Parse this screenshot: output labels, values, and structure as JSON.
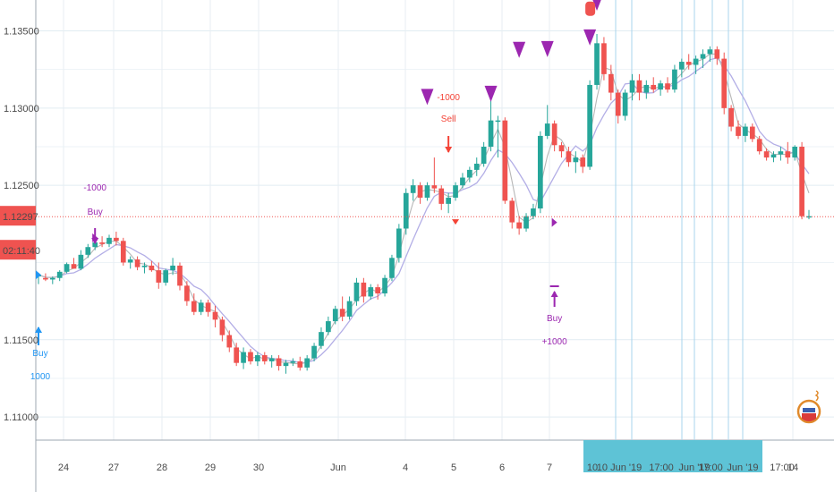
{
  "chart_data": {
    "type": "candlestick",
    "y_range": [
      1.1085,
      1.137
    ],
    "y_ticks": [
      {
        "v": 1.135,
        "label": "1.13500"
      },
      {
        "v": 1.13,
        "label": "1.13000"
      },
      {
        "v": 1.125,
        "label": "1.12500"
      },
      {
        "v": 1.115,
        "label": "1.11500"
      },
      {
        "v": 1.11,
        "label": "1.11000"
      }
    ],
    "x_ticks": [
      "24",
      "27",
      "28",
      "29",
      "30",
      "Jun",
      "4",
      "5",
      "6",
      "7",
      "10",
      "10 Jun '19",
      "17:00",
      "Jun '19",
      "17:00",
      "Jun '19",
      "17:00",
      "14"
    ],
    "current_price": {
      "value": 1.12297,
      "label": "1.12297",
      "countdown": "02:11:40"
    },
    "colors": {
      "up": "#26a69a",
      "down": "#ef5350",
      "ma_fast": "#b7b7b7",
      "ma_slow": "#b3aee6",
      "signal": "#9c27b0",
      "buy": "#2196f3",
      "sell": "#f44336",
      "price_line": "#ef5350"
    },
    "candles": [
      [
        1.1191,
        1.1193,
        1.1186,
        1.1192
      ],
      [
        1.119,
        1.1193,
        1.1188,
        1.1189
      ],
      [
        1.1189,
        1.1191,
        1.1186,
        1.119
      ],
      [
        1.119,
        1.1195,
        1.1188,
        1.1194
      ],
      [
        1.1194,
        1.12,
        1.1193,
        1.1199
      ],
      [
        1.1199,
        1.1203,
        1.1196,
        1.1196
      ],
      [
        1.1196,
        1.1208,
        1.1195,
        1.1205
      ],
      [
        1.1205,
        1.1212,
        1.1203,
        1.121
      ],
      [
        1.121,
        1.1215,
        1.1208,
        1.1213
      ],
      [
        1.1213,
        1.1217,
        1.121,
        1.1212
      ],
      [
        1.1212,
        1.1218,
        1.121,
        1.1216
      ],
      [
        1.1216,
        1.122,
        1.1211,
        1.1214
      ],
      [
        1.1214,
        1.1216,
        1.1198,
        1.12
      ],
      [
        1.12,
        1.1204,
        1.1196,
        1.1202
      ],
      [
        1.1202,
        1.1204,
        1.1195,
        1.1197
      ],
      [
        1.1197,
        1.12,
        1.1193,
        1.1198
      ],
      [
        1.1198,
        1.1201,
        1.1194,
        1.1195
      ],
      [
        1.1195,
        1.12,
        1.1183,
        1.1187
      ],
      [
        1.1187,
        1.1196,
        1.1185,
        1.1195
      ],
      [
        1.1195,
        1.1203,
        1.1192,
        1.1198
      ],
      [
        1.1198,
        1.12,
        1.1182,
        1.1185
      ],
      [
        1.1185,
        1.1188,
        1.1172,
        1.1175
      ],
      [
        1.1175,
        1.118,
        1.1166,
        1.1168
      ],
      [
        1.1168,
        1.1176,
        1.1166,
        1.1174
      ],
      [
        1.1174,
        1.1176,
        1.1165,
        1.1168
      ],
      [
        1.1168,
        1.1172,
        1.1158,
        1.1163
      ],
      [
        1.1163,
        1.1165,
        1.1149,
        1.1153
      ],
      [
        1.1153,
        1.1156,
        1.1142,
        1.1145
      ],
      [
        1.1145,
        1.1148,
        1.1133,
        1.1135
      ],
      [
        1.1135,
        1.1145,
        1.1131,
        1.1142
      ],
      [
        1.1142,
        1.1144,
        1.1134,
        1.1136
      ],
      [
        1.1136,
        1.1142,
        1.1133,
        1.114
      ],
      [
        1.114,
        1.1142,
        1.1134,
        1.1136
      ],
      [
        1.1136,
        1.114,
        1.1132,
        1.1138
      ],
      [
        1.1138,
        1.114,
        1.113,
        1.1133
      ],
      [
        1.1133,
        1.1137,
        1.1128,
        1.1135
      ],
      [
        1.1135,
        1.1138,
        1.1133,
        1.1136
      ],
      [
        1.1136,
        1.1139,
        1.113,
        1.1132
      ],
      [
        1.1132,
        1.114,
        1.113,
        1.1138
      ],
      [
        1.1138,
        1.1148,
        1.1136,
        1.1146
      ],
      [
        1.1146,
        1.1158,
        1.1144,
        1.1155
      ],
      [
        1.1155,
        1.1165,
        1.1153,
        1.1162
      ],
      [
        1.1162,
        1.1172,
        1.116,
        1.117
      ],
      [
        1.117,
        1.1178,
        1.1162,
        1.1165
      ],
      [
        1.1165,
        1.1178,
        1.1163,
        1.1175
      ],
      [
        1.1175,
        1.119,
        1.1172,
        1.1187
      ],
      [
        1.1187,
        1.119,
        1.1174,
        1.1178
      ],
      [
        1.1178,
        1.1186,
        1.1176,
        1.1184
      ],
      [
        1.1184,
        1.1186,
        1.1176,
        1.118
      ],
      [
        1.118,
        1.1192,
        1.1178,
        1.119
      ],
      [
        1.119,
        1.1205,
        1.1188,
        1.1203
      ],
      [
        1.1203,
        1.1225,
        1.12,
        1.1222
      ],
      [
        1.1222,
        1.1248,
        1.1218,
        1.1245
      ],
      [
        1.1245,
        1.1254,
        1.124,
        1.125
      ],
      [
        1.125,
        1.1252,
        1.1238,
        1.1242
      ],
      [
        1.1242,
        1.1252,
        1.124,
        1.125
      ],
      [
        1.125,
        1.1268,
        1.1245,
        1.1248
      ],
      [
        1.1248,
        1.125,
        1.1234,
        1.1238
      ],
      [
        1.1238,
        1.1245,
        1.1232,
        1.1242
      ],
      [
        1.1242,
        1.1252,
        1.124,
        1.125
      ],
      [
        1.125,
        1.1258,
        1.1248,
        1.1255
      ],
      [
        1.1255,
        1.1262,
        1.1252,
        1.126
      ],
      [
        1.126,
        1.1268,
        1.1256,
        1.1264
      ],
      [
        1.1264,
        1.1278,
        1.1262,
        1.1275
      ],
      [
        1.1275,
        1.1305,
        1.1272,
        1.1292
      ],
      [
        1.1292,
        1.1295,
        1.1268,
        1.1292
      ],
      [
        1.1292,
        1.1294,
        1.1238,
        1.124
      ],
      [
        1.124,
        1.1242,
        1.1222,
        1.1226
      ],
      [
        1.1226,
        1.123,
        1.1218,
        1.1222
      ],
      [
        1.1222,
        1.1232,
        1.122,
        1.123
      ],
      [
        1.123,
        1.1238,
        1.1228,
        1.1235
      ],
      [
        1.1235,
        1.1285,
        1.1232,
        1.1282
      ],
      [
        1.1282,
        1.1302,
        1.128,
        1.129
      ],
      [
        1.129,
        1.1292,
        1.1272,
        1.1276
      ],
      [
        1.1276,
        1.1278,
        1.1268,
        1.1272
      ],
      [
        1.1272,
        1.1275,
        1.1262,
        1.1265
      ],
      [
        1.1265,
        1.1272,
        1.1258,
        1.1268
      ],
      [
        1.1268,
        1.127,
        1.1258,
        1.1262
      ],
      [
        1.1262,
        1.1318,
        1.126,
        1.1315
      ],
      [
        1.1315,
        1.1348,
        1.1312,
        1.1342
      ],
      [
        1.1342,
        1.1346,
        1.1318,
        1.1322
      ],
      [
        1.1322,
        1.1328,
        1.1305,
        1.131
      ],
      [
        1.131,
        1.1312,
        1.129,
        1.1295
      ],
      [
        1.1295,
        1.1312,
        1.1292,
        1.131
      ],
      [
        1.131,
        1.1322,
        1.1305,
        1.1318
      ],
      [
        1.1318,
        1.1322,
        1.1305,
        1.131
      ],
      [
        1.131,
        1.1318,
        1.1306,
        1.1315
      ],
      [
        1.1315,
        1.132,
        1.131,
        1.1312
      ],
      [
        1.1312,
        1.1318,
        1.1308,
        1.1316
      ],
      [
        1.1316,
        1.132,
        1.131,
        1.1312
      ],
      [
        1.1312,
        1.1328,
        1.131,
        1.1325
      ],
      [
        1.1325,
        1.1332,
        1.132,
        1.133
      ],
      [
        1.133,
        1.1335,
        1.1325,
        1.1328
      ],
      [
        1.1328,
        1.1334,
        1.1322,
        1.1332
      ],
      [
        1.1332,
        1.1338,
        1.1326,
        1.1335
      ],
      [
        1.1335,
        1.134,
        1.133,
        1.1338
      ],
      [
        1.1338,
        1.134,
        1.1328,
        1.1332
      ],
      [
        1.1332,
        1.1336,
        1.1296,
        1.13
      ],
      [
        1.13,
        1.1302,
        1.1285,
        1.1288
      ],
      [
        1.1288,
        1.1292,
        1.128,
        1.1282
      ],
      [
        1.1282,
        1.129,
        1.1278,
        1.1288
      ],
      [
        1.1288,
        1.129,
        1.1278,
        1.128
      ],
      [
        1.128,
        1.1282,
        1.127,
        1.1272
      ],
      [
        1.1272,
        1.1274,
        1.1266,
        1.1268
      ],
      [
        1.1268,
        1.1272,
        1.1265,
        1.127
      ],
      [
        1.127,
        1.1275,
        1.1266,
        1.1272
      ],
      [
        1.1272,
        1.1278,
        1.1264,
        1.1268
      ],
      [
        1.1268,
        1.1276,
        1.1266,
        1.1275
      ],
      [
        1.1275,
        1.1278,
        1.1228,
        1.123
      ],
      [
        1.123,
        1.1234,
        1.1228,
        1.123
      ]
    ],
    "annotations": [
      {
        "type": "buy",
        "label": "Buy",
        "amount": "1000",
        "candle": 0
      },
      {
        "type": "signal_buy",
        "label": "Buy",
        "amount": "-1000",
        "candle": 8
      },
      {
        "type": "sell",
        "label": "Sell",
        "amount": "-1000",
        "candle": 58
      },
      {
        "type": "signal_buy",
        "label": "Buy",
        "amount": "+1000",
        "candle": 73
      }
    ]
  }
}
